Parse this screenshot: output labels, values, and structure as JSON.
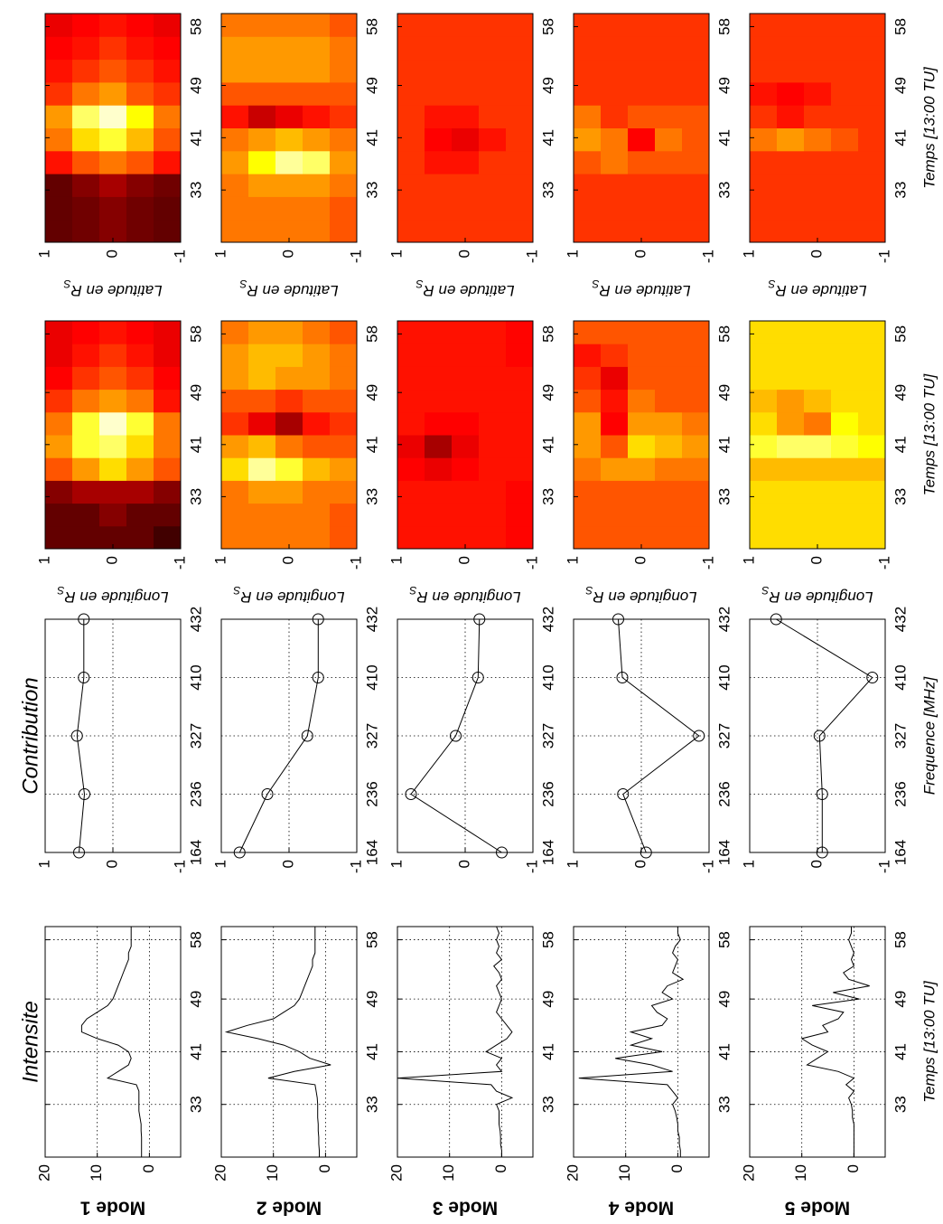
{
  "chart_data": [
    {
      "type": "line",
      "title": "Intensite",
      "xlabel": "Temps [13:00 TU]",
      "x": [
        25,
        26,
        27,
        28,
        29,
        30,
        31,
        32,
        33,
        34,
        35,
        36,
        37,
        38,
        39,
        40,
        41,
        42,
        43,
        44,
        45,
        46,
        47,
        48,
        49,
        50,
        51,
        52,
        53,
        54,
        55,
        56,
        57,
        58,
        59,
        60
      ],
      "xlim": [
        25,
        60
      ],
      "xticks": [
        33,
        41,
        49,
        58
      ],
      "ylim": [
        -6,
        20
      ],
      "yticks": [
        0,
        10,
        20
      ],
      "grid": true,
      "series": [
        {
          "name": "Mode 1",
          "color": "#000000",
          "values": [
            1.5,
            1.5,
            1.5,
            1.5,
            1.6,
            1.6,
            1.8,
            2,
            2,
            2,
            2,
            2.5,
            8,
            6,
            4,
            3.5,
            4,
            6,
            10,
            13,
            13,
            12,
            10,
            8,
            7,
            6.5,
            6,
            5.5,
            5,
            4.5,
            4,
            4,
            3.5,
            3.5,
            3.5,
            3.5
          ]
        },
        {
          "name": "Mode 2",
          "color": "#000000",
          "values": [
            1.2,
            1.2,
            1.3,
            1.3,
            1.4,
            1.4,
            1.5,
            1.5,
            1.5,
            1.6,
            1.8,
            2,
            11,
            6,
            -1,
            3,
            5,
            8,
            13,
            19,
            15,
            10,
            8,
            6,
            5,
            4.5,
            4,
            3.5,
            3,
            2.5,
            2.5,
            2,
            2,
            2,
            2,
            2
          ]
        },
        {
          "name": "Mode 3",
          "color": "#000000",
          "values": [
            0,
            0,
            0.2,
            0.2,
            0.3,
            0.5,
            0.5,
            0.5,
            1,
            -2,
            1,
            2,
            20,
            0,
            1,
            0,
            3,
            1,
            -1,
            -2,
            -1,
            0,
            1,
            0.5,
            0,
            0.5,
            1,
            0,
            0.5,
            1.5,
            0,
            1,
            0.5,
            1,
            0.5,
            1
          ]
        },
        {
          "name": "Mode 4",
          "color": "#000000",
          "values": [
            -0.5,
            -0.5,
            -0.3,
            -0.3,
            0,
            0,
            0.2,
            0.5,
            1,
            0,
            1,
            2,
            19,
            1,
            5,
            12,
            3,
            9,
            5,
            9,
            3,
            2,
            4,
            5,
            1,
            3,
            2,
            -1,
            1,
            0.5,
            0,
            1,
            0.5,
            -0.5,
            0,
            0
          ]
        },
        {
          "name": "Mode 5",
          "color": "#000000",
          "values": [
            0,
            0,
            0,
            0,
            0,
            0,
            0.3,
            0.3,
            0.5,
            1,
            0,
            1.5,
            0,
            3,
            9,
            7,
            5,
            8,
            10,
            5,
            6,
            3,
            2,
            8,
            -1,
            4,
            -3,
            1,
            2,
            0,
            0.5,
            0,
            0.5,
            1,
            0.5,
            0.5
          ]
        }
      ]
    },
    {
      "type": "line",
      "marker": "circle",
      "title": "Contribution",
      "xlabel": "Frequence [MHz]",
      "categories": [
        "164",
        "236",
        "327",
        "410",
        "432"
      ],
      "ylim": [
        -1,
        1
      ],
      "yticks": [
        -1,
        0,
        1
      ],
      "grid": true,
      "series": [
        {
          "color": "#000000",
          "values": [
            0.5,
            0.42,
            0.53,
            0.43,
            0.43
          ]
        },
        {
          "color": "#000000",
          "values": [
            0.73,
            0.32,
            -0.27,
            -0.43,
            -0.43
          ]
        },
        {
          "color": "#000000",
          "values": [
            -0.54,
            0.8,
            0.14,
            -0.19,
            -0.21
          ]
        },
        {
          "color": "#000000",
          "values": [
            -0.07,
            0.27,
            -0.85,
            0.28,
            0.34
          ]
        },
        {
          "color": "#000000",
          "values": [
            -0.07,
            -0.07,
            -0.03,
            -0.81,
            0.61
          ]
        }
      ]
    },
    {
      "type": "heatmap",
      "colormap": "hot",
      "xlabel": "Temps [13:00 TU]",
      "ylabel": "Longitude en R",
      "ylabel_sub": "S",
      "xbins": [
        25,
        28.5,
        32,
        35.5,
        39,
        42.5,
        46,
        49.5,
        53,
        56.5,
        60
      ],
      "ybins": [
        1,
        0.6,
        0.2,
        -0.2,
        -0.6,
        -1
      ],
      "xlim": [
        25,
        60
      ],
      "xticks": [
        33,
        41,
        49,
        58
      ],
      "ylim": [
        -1,
        1
      ],
      "yticks": [
        -1,
        0,
        1
      ],
      "series": [
        {
          "values": [
            [
              0.1,
              0.1,
              0.15,
              0.5,
              0.6,
              0.55,
              0.45,
              0.35,
              0.3,
              0.3
            ],
            [
              0.1,
              0.1,
              0.2,
              0.6,
              0.8,
              0.8,
              0.55,
              0.45,
              0.4,
              0.35
            ],
            [
              0.1,
              0.15,
              0.2,
              0.7,
              0.85,
              0.95,
              0.6,
              0.5,
              0.45,
              0.4
            ],
            [
              0.1,
              0.1,
              0.2,
              0.6,
              0.7,
              0.8,
              0.55,
              0.45,
              0.4,
              0.35
            ],
            [
              0.05,
              0.1,
              0.15,
              0.5,
              0.55,
              0.55,
              0.4,
              0.35,
              0.3,
              0.3
            ]
          ]
        },
        {
          "values": [
            [
              0.55,
              0.55,
              0.55,
              0.7,
              0.6,
              0.45,
              0.5,
              0.6,
              0.6,
              0.55
            ],
            [
              0.55,
              0.55,
              0.6,
              0.9,
              0.65,
              0.3,
              0.5,
              0.65,
              0.65,
              0.6
            ],
            [
              0.55,
              0.55,
              0.6,
              0.8,
              0.55,
              0.2,
              0.45,
              0.6,
              0.65,
              0.6
            ],
            [
              0.55,
              0.55,
              0.55,
              0.65,
              0.5,
              0.4,
              0.5,
              0.6,
              0.6,
              0.55
            ],
            [
              0.5,
              0.5,
              0.55,
              0.6,
              0.5,
              0.45,
              0.5,
              0.55,
              0.55,
              0.5
            ]
          ]
        },
        {
          "values": [
            [
              0.4,
              0.4,
              0.4,
              0.35,
              0.3,
              0.4,
              0.4,
              0.4,
              0.4,
              0.4
            ],
            [
              0.4,
              0.4,
              0.4,
              0.3,
              0.2,
              0.35,
              0.4,
              0.4,
              0.4,
              0.4
            ],
            [
              0.4,
              0.4,
              0.4,
              0.35,
              0.3,
              0.35,
              0.4,
              0.4,
              0.4,
              0.4
            ],
            [
              0.4,
              0.4,
              0.4,
              0.4,
              0.4,
              0.4,
              0.4,
              0.4,
              0.4,
              0.4
            ],
            [
              0.38,
              0.38,
              0.38,
              0.4,
              0.4,
              0.4,
              0.4,
              0.4,
              0.38,
              0.38
            ]
          ]
        },
        {
          "values": [
            [
              0.5,
              0.5,
              0.5,
              0.55,
              0.6,
              0.6,
              0.5,
              0.45,
              0.4,
              0.5
            ],
            [
              0.5,
              0.5,
              0.5,
              0.6,
              0.5,
              0.35,
              0.4,
              0.3,
              0.45,
              0.5
            ],
            [
              0.5,
              0.5,
              0.5,
              0.6,
              0.7,
              0.6,
              0.55,
              0.5,
              0.5,
              0.5
            ],
            [
              0.5,
              0.5,
              0.5,
              0.55,
              0.65,
              0.6,
              0.5,
              0.5,
              0.5,
              0.5
            ],
            [
              0.5,
              0.5,
              0.5,
              0.55,
              0.6,
              0.55,
              0.5,
              0.5,
              0.5,
              0.5
            ]
          ]
        },
        {
          "values": [
            [
              0.7,
              0.7,
              0.7,
              0.65,
              0.8,
              0.7,
              0.65,
              0.7,
              0.7,
              0.7
            ],
            [
              0.7,
              0.7,
              0.7,
              0.65,
              0.85,
              0.6,
              0.6,
              0.7,
              0.7,
              0.7
            ],
            [
              0.7,
              0.7,
              0.7,
              0.65,
              0.85,
              0.55,
              0.65,
              0.7,
              0.7,
              0.7
            ],
            [
              0.7,
              0.7,
              0.7,
              0.65,
              0.8,
              0.75,
              0.7,
              0.7,
              0.7,
              0.7
            ],
            [
              0.7,
              0.7,
              0.7,
              0.65,
              0.75,
              0.7,
              0.7,
              0.7,
              0.7,
              0.7
            ]
          ]
        }
      ]
    },
    {
      "type": "heatmap",
      "colormap": "hot",
      "xlabel": "Temps [13:00 TU]",
      "ylabel": "Latitude en R",
      "ylabel_sub": "S",
      "xbins": [
        25,
        28.5,
        32,
        35.5,
        39,
        42.5,
        46,
        49.5,
        53,
        56.5,
        60
      ],
      "ybins": [
        1,
        0.6,
        0.2,
        -0.2,
        -0.6,
        -1
      ],
      "xlim": [
        25,
        60
      ],
      "xticks": [
        33,
        41,
        49,
        58
      ],
      "ylim": [
        -1,
        1
      ],
      "yticks": [
        -1,
        0,
        1
      ],
      "series": [
        {
          "values": [
            [
              0.1,
              0.1,
              0.1,
              0.4,
              0.55,
              0.6,
              0.45,
              0.4,
              0.35,
              0.3
            ],
            [
              0.12,
              0.12,
              0.15,
              0.5,
              0.7,
              0.85,
              0.55,
              0.45,
              0.4,
              0.35
            ],
            [
              0.15,
              0.15,
              0.2,
              0.55,
              0.8,
              0.95,
              0.6,
              0.5,
              0.45,
              0.4
            ],
            [
              0.12,
              0.12,
              0.15,
              0.5,
              0.65,
              0.75,
              0.5,
              0.45,
              0.4,
              0.35
            ],
            [
              0.1,
              0.1,
              0.12,
              0.4,
              0.5,
              0.55,
              0.45,
              0.4,
              0.35,
              0.3
            ]
          ]
        },
        {
          "values": [
            [
              0.55,
              0.55,
              0.55,
              0.6,
              0.55,
              0.4,
              0.5,
              0.6,
              0.6,
              0.55
            ],
            [
              0.55,
              0.55,
              0.6,
              0.75,
              0.6,
              0.25,
              0.5,
              0.6,
              0.6,
              0.55
            ],
            [
              0.55,
              0.55,
              0.6,
              0.9,
              0.65,
              0.3,
              0.5,
              0.6,
              0.6,
              0.55
            ],
            [
              0.55,
              0.55,
              0.6,
              0.85,
              0.6,
              0.4,
              0.5,
              0.6,
              0.6,
              0.55
            ],
            [
              0.5,
              0.5,
              0.55,
              0.6,
              0.55,
              0.45,
              0.5,
              0.55,
              0.55,
              0.5
            ]
          ]
        },
        {
          "values": [
            [
              0.45,
              0.45,
              0.45,
              0.45,
              0.45,
              0.45,
              0.45,
              0.45,
              0.45,
              0.45
            ],
            [
              0.45,
              0.45,
              0.45,
              0.4,
              0.35,
              0.4,
              0.45,
              0.45,
              0.45,
              0.45
            ],
            [
              0.45,
              0.45,
              0.45,
              0.4,
              0.3,
              0.4,
              0.45,
              0.45,
              0.45,
              0.45
            ],
            [
              0.45,
              0.45,
              0.45,
              0.45,
              0.4,
              0.45,
              0.45,
              0.45,
              0.45,
              0.45
            ],
            [
              0.45,
              0.45,
              0.45,
              0.45,
              0.45,
              0.45,
              0.45,
              0.45,
              0.45,
              0.45
            ]
          ]
        },
        {
          "values": [
            [
              0.45,
              0.45,
              0.45,
              0.5,
              0.6,
              0.55,
              0.45,
              0.45,
              0.45,
              0.45
            ],
            [
              0.45,
              0.45,
              0.45,
              0.55,
              0.55,
              0.45,
              0.45,
              0.45,
              0.45,
              0.45
            ],
            [
              0.45,
              0.45,
              0.45,
              0.5,
              0.35,
              0.5,
              0.45,
              0.45,
              0.45,
              0.45
            ],
            [
              0.45,
              0.45,
              0.45,
              0.5,
              0.55,
              0.5,
              0.45,
              0.45,
              0.45,
              0.45
            ],
            [
              0.45,
              0.45,
              0.45,
              0.5,
              0.5,
              0.5,
              0.45,
              0.45,
              0.45,
              0.45
            ]
          ]
        },
        {
          "values": [
            [
              0.45,
              0.45,
              0.45,
              0.45,
              0.55,
              0.45,
              0.4,
              0.45,
              0.45,
              0.45
            ],
            [
              0.45,
              0.45,
              0.45,
              0.45,
              0.6,
              0.4,
              0.35,
              0.45,
              0.45,
              0.45
            ],
            [
              0.45,
              0.45,
              0.45,
              0.45,
              0.55,
              0.45,
              0.4,
              0.45,
              0.45,
              0.45
            ],
            [
              0.45,
              0.45,
              0.45,
              0.45,
              0.5,
              0.45,
              0.45,
              0.45,
              0.45,
              0.45
            ],
            [
              0.45,
              0.45,
              0.45,
              0.45,
              0.45,
              0.45,
              0.45,
              0.45,
              0.45,
              0.45
            ]
          ]
        }
      ]
    }
  ]
}
